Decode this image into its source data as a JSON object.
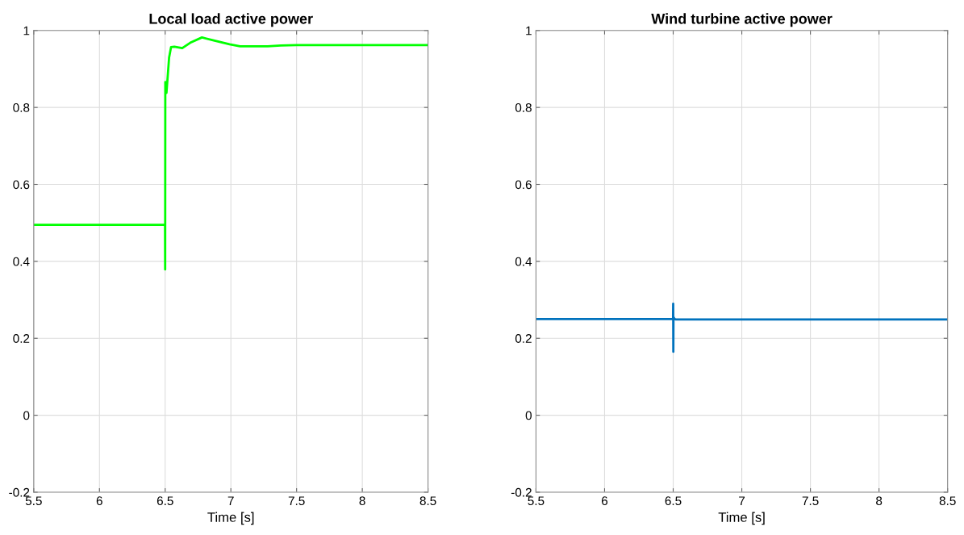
{
  "chart_data": [
    {
      "type": "line",
      "title": "Local load active power",
      "xlabel": "Time [s]",
      "xlim": [
        5.5,
        8.5
      ],
      "xticks": [
        5.5,
        6,
        6.5,
        7,
        7.5,
        8,
        8.5
      ],
      "ylim": [
        -0.2,
        1
      ],
      "yticks": [
        -0.2,
        0,
        0.2,
        0.4,
        0.6,
        0.8,
        1
      ],
      "grid": true,
      "series": [
        {
          "color": "#00ff00",
          "x": [
            5.5,
            6.0,
            6.499,
            6.5,
            6.501,
            6.502,
            6.51,
            6.53,
            6.545,
            6.57,
            6.63,
            6.69,
            6.78,
            6.87,
            6.99,
            7.07,
            7.28,
            7.38,
            7.5,
            8.0,
            8.5
          ],
          "values": [
            0.495,
            0.495,
            0.495,
            0.379,
            0.866,
            0.85,
            0.838,
            0.93,
            0.957,
            0.958,
            0.954,
            0.968,
            0.982,
            0.974,
            0.964,
            0.959,
            0.959,
            0.961,
            0.962,
            0.962,
            0.962
          ]
        }
      ]
    },
    {
      "type": "line",
      "title": "Wind turbine active power",
      "xlabel": "Time [s]",
      "xlim": [
        5.5,
        8.5
      ],
      "xticks": [
        5.5,
        6,
        6.5,
        7,
        7.5,
        8,
        8.5
      ],
      "ylim": [
        -0.2,
        1
      ],
      "yticks": [
        -0.2,
        0,
        0.2,
        0.4,
        0.6,
        0.8,
        1
      ],
      "grid": true,
      "series": [
        {
          "color": "#0072bd",
          "x": [
            5.5,
            6.0,
            6.499,
            6.5,
            6.501,
            6.502,
            6.51,
            6.52,
            7.0,
            8.0,
            8.5
          ],
          "values": [
            0.25,
            0.25,
            0.25,
            0.29,
            0.165,
            0.255,
            0.25,
            0.249,
            0.249,
            0.249,
            0.249
          ]
        }
      ]
    }
  ]
}
